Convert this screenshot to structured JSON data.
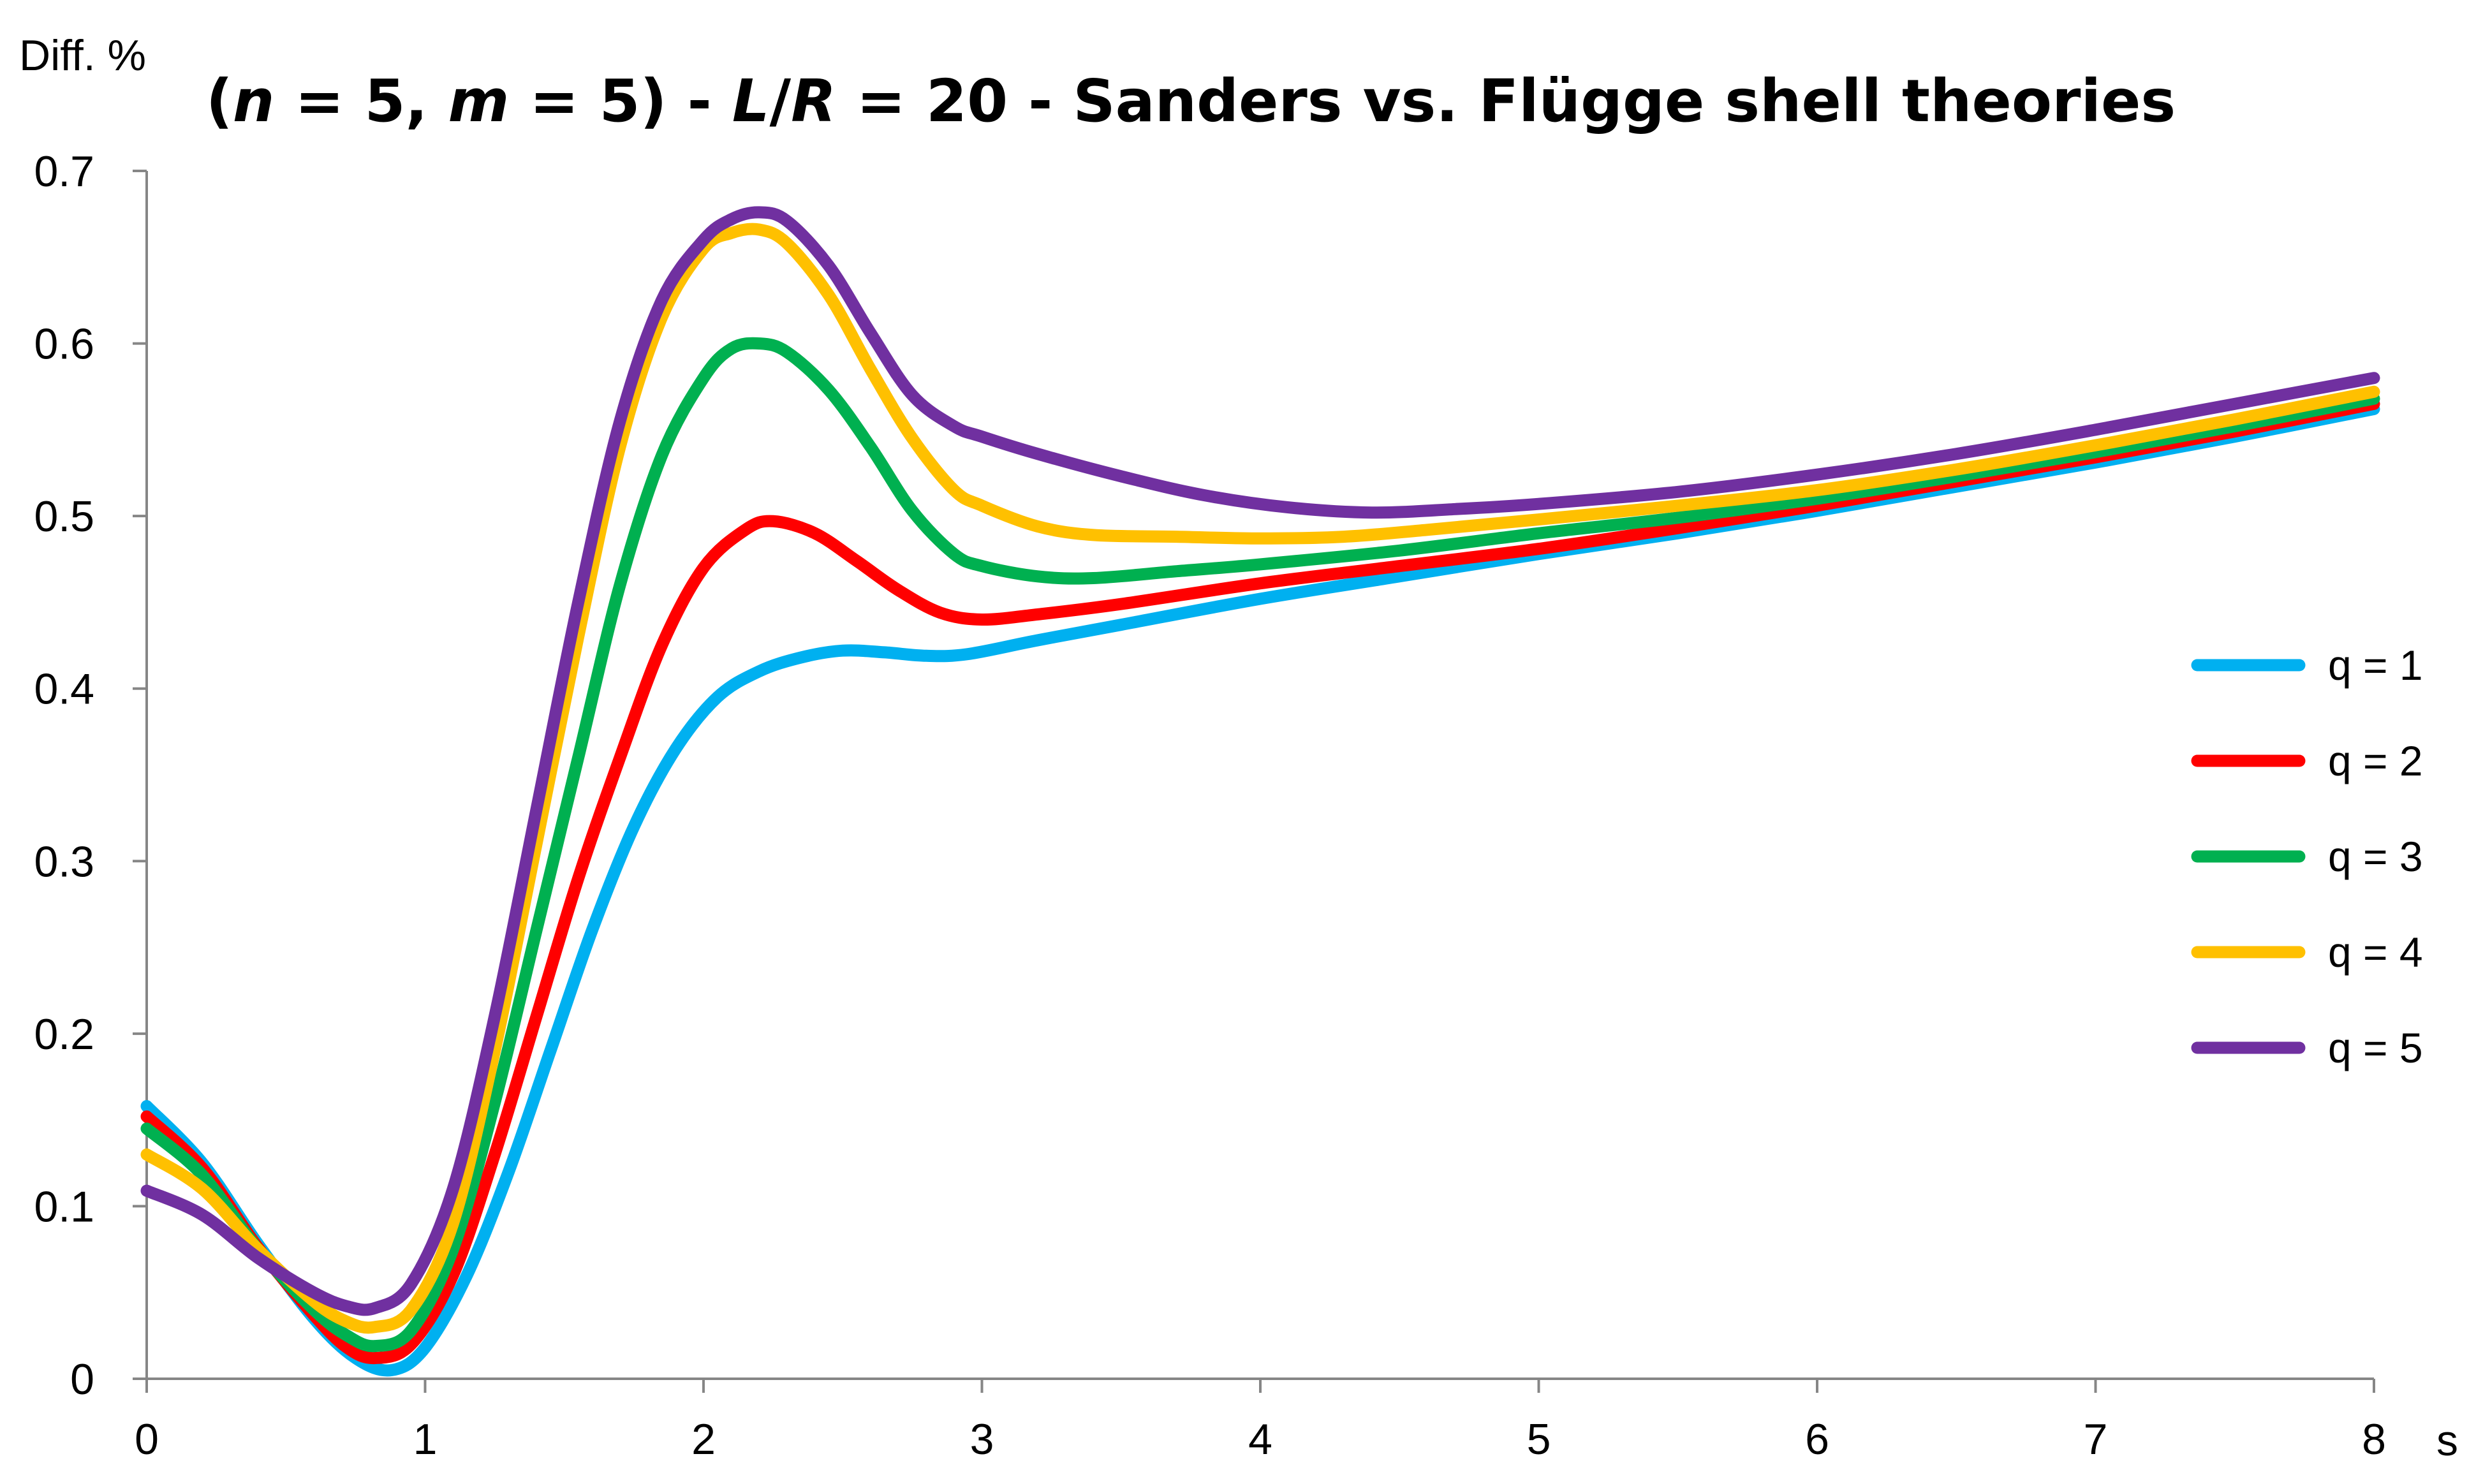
{
  "chart_data": {
    "type": "line",
    "title_parts": [
      {
        "text": "(",
        "italic": false
      },
      {
        "text": "n",
        "italic": true
      },
      {
        "text": " = 5, ",
        "italic": false
      },
      {
        "text": "m",
        "italic": true
      },
      {
        "text": " = 5) - ",
        "italic": false
      },
      {
        "text": "L",
        "italic": true
      },
      {
        "text": "/",
        "italic": false
      },
      {
        "text": "R",
        "italic": true
      },
      {
        "text": " = 20 - Sanders vs. Flügge shell theories",
        "italic": false
      }
    ],
    "xlabel": "s",
    "ylabel": "Diff. %",
    "xlim": [
      0,
      8
    ],
    "ylim": [
      0,
      0.7
    ],
    "xticks": [
      0,
      1,
      2,
      3,
      4,
      5,
      6,
      7,
      8
    ],
    "yticks": [
      0,
      0.1,
      0.2,
      0.3,
      0.4,
      0.5,
      0.6,
      0.7
    ],
    "ytick_labels": [
      "0",
      "0.1",
      "0.2",
      "0.3",
      "0.4",
      "0.5",
      "0.6",
      "0.7"
    ],
    "grid": false,
    "legend_position": "right",
    "series": [
      {
        "name": "q = 1",
        "color": "#00B0F0",
        "points": [
          [
            0,
            0.158
          ],
          [
            0.2,
            0.125
          ],
          [
            0.4,
            0.078
          ],
          [
            0.6,
            0.035
          ],
          [
            0.75,
            0.012
          ],
          [
            0.88,
            0.005
          ],
          [
            1.0,
            0.018
          ],
          [
            1.15,
            0.06
          ],
          [
            1.3,
            0.12
          ],
          [
            1.45,
            0.19
          ],
          [
            1.6,
            0.26
          ],
          [
            1.75,
            0.32
          ],
          [
            1.9,
            0.365
          ],
          [
            2.05,
            0.395
          ],
          [
            2.2,
            0.41
          ],
          [
            2.35,
            0.418
          ],
          [
            2.5,
            0.422
          ],
          [
            2.65,
            0.421
          ],
          [
            2.8,
            0.419
          ],
          [
            2.95,
            0.42
          ],
          [
            3.2,
            0.428
          ],
          [
            3.5,
            0.437
          ],
          [
            4.0,
            0.452
          ],
          [
            4.5,
            0.465
          ],
          [
            5.0,
            0.478
          ],
          [
            5.5,
            0.49
          ],
          [
            6.0,
            0.503
          ],
          [
            6.5,
            0.517
          ],
          [
            7.0,
            0.531
          ],
          [
            7.5,
            0.546
          ],
          [
            8.0,
            0.562
          ]
        ]
      },
      {
        "name": "q = 2",
        "color": "#FF0000",
        "points": [
          [
            0,
            0.152
          ],
          [
            0.2,
            0.122
          ],
          [
            0.4,
            0.076
          ],
          [
            0.6,
            0.037
          ],
          [
            0.72,
            0.018
          ],
          [
            0.82,
            0.012
          ],
          [
            0.95,
            0.02
          ],
          [
            1.1,
            0.06
          ],
          [
            1.25,
            0.13
          ],
          [
            1.4,
            0.21
          ],
          [
            1.55,
            0.29
          ],
          [
            1.7,
            0.36
          ],
          [
            1.85,
            0.425
          ],
          [
            2.0,
            0.47
          ],
          [
            2.15,
            0.492
          ],
          [
            2.25,
            0.497
          ],
          [
            2.4,
            0.49
          ],
          [
            2.55,
            0.474
          ],
          [
            2.7,
            0.457
          ],
          [
            2.85,
            0.444
          ],
          [
            3.0,
            0.44
          ],
          [
            3.2,
            0.443
          ],
          [
            3.5,
            0.449
          ],
          [
            4.0,
            0.461
          ],
          [
            4.5,
            0.471
          ],
          [
            5.0,
            0.481
          ],
          [
            5.5,
            0.493
          ],
          [
            6.0,
            0.506
          ],
          [
            6.5,
            0.52
          ],
          [
            7.0,
            0.534
          ],
          [
            7.5,
            0.549
          ],
          [
            8.0,
            0.565
          ]
        ]
      },
      {
        "name": "q = 3",
        "color": "#00B050",
        "points": [
          [
            0,
            0.145
          ],
          [
            0.2,
            0.118
          ],
          [
            0.4,
            0.075
          ],
          [
            0.6,
            0.04
          ],
          [
            0.72,
            0.025
          ],
          [
            0.82,
            0.019
          ],
          [
            0.95,
            0.028
          ],
          [
            1.1,
            0.075
          ],
          [
            1.25,
            0.16
          ],
          [
            1.4,
            0.26
          ],
          [
            1.55,
            0.36
          ],
          [
            1.7,
            0.46
          ],
          [
            1.85,
            0.535
          ],
          [
            2.0,
            0.58
          ],
          [
            2.1,
            0.597
          ],
          [
            2.2,
            0.6
          ],
          [
            2.3,
            0.595
          ],
          [
            2.45,
            0.573
          ],
          [
            2.6,
            0.54
          ],
          [
            2.75,
            0.503
          ],
          [
            2.9,
            0.478
          ],
          [
            3.0,
            0.471
          ],
          [
            3.2,
            0.465
          ],
          [
            3.4,
            0.464
          ],
          [
            3.7,
            0.468
          ],
          [
            4.0,
            0.472
          ],
          [
            4.5,
            0.48
          ],
          [
            5.0,
            0.49
          ],
          [
            5.5,
            0.499
          ],
          [
            6.0,
            0.51
          ],
          [
            6.5,
            0.523
          ],
          [
            7.0,
            0.537
          ],
          [
            7.5,
            0.552
          ],
          [
            8.0,
            0.568
          ]
        ]
      },
      {
        "name": "q = 4",
        "color": "#FFC000",
        "points": [
          [
            0,
            0.13
          ],
          [
            0.2,
            0.11
          ],
          [
            0.4,
            0.075
          ],
          [
            0.6,
            0.045
          ],
          [
            0.72,
            0.033
          ],
          [
            0.82,
            0.03
          ],
          [
            0.95,
            0.04
          ],
          [
            1.1,
            0.09
          ],
          [
            1.25,
            0.19
          ],
          [
            1.4,
            0.31
          ],
          [
            1.55,
            0.43
          ],
          [
            1.7,
            0.54
          ],
          [
            1.85,
            0.615
          ],
          [
            2.0,
            0.655
          ],
          [
            2.1,
            0.664
          ],
          [
            2.2,
            0.666
          ],
          [
            2.3,
            0.658
          ],
          [
            2.45,
            0.628
          ],
          [
            2.6,
            0.585
          ],
          [
            2.75,
            0.545
          ],
          [
            2.9,
            0.515
          ],
          [
            3.0,
            0.506
          ],
          [
            3.2,
            0.494
          ],
          [
            3.4,
            0.489
          ],
          [
            3.7,
            0.488
          ],
          [
            4.0,
            0.487
          ],
          [
            4.3,
            0.488
          ],
          [
            4.6,
            0.492
          ],
          [
            5.0,
            0.498
          ],
          [
            5.5,
            0.506
          ],
          [
            6.0,
            0.515
          ],
          [
            6.5,
            0.527
          ],
          [
            7.0,
            0.541
          ],
          [
            7.5,
            0.556
          ],
          [
            8.0,
            0.572
          ]
        ]
      },
      {
        "name": "q = 5",
        "color": "#7030A0",
        "points": [
          [
            0,
            0.109
          ],
          [
            0.2,
            0.095
          ],
          [
            0.4,
            0.07
          ],
          [
            0.6,
            0.05
          ],
          [
            0.72,
            0.042
          ],
          [
            0.82,
            0.041
          ],
          [
            0.95,
            0.055
          ],
          [
            1.1,
            0.11
          ],
          [
            1.25,
            0.21
          ],
          [
            1.4,
            0.33
          ],
          [
            1.55,
            0.45
          ],
          [
            1.7,
            0.555
          ],
          [
            1.85,
            0.625
          ],
          [
            2.0,
            0.66
          ],
          [
            2.1,
            0.672
          ],
          [
            2.2,
            0.676
          ],
          [
            2.3,
            0.671
          ],
          [
            2.45,
            0.645
          ],
          [
            2.6,
            0.606
          ],
          [
            2.75,
            0.57
          ],
          [
            2.9,
            0.552
          ],
          [
            3.0,
            0.546
          ],
          [
            3.2,
            0.536
          ],
          [
            3.5,
            0.523
          ],
          [
            3.8,
            0.512
          ],
          [
            4.1,
            0.505
          ],
          [
            4.4,
            0.502
          ],
          [
            4.7,
            0.504
          ],
          [
            5.0,
            0.507
          ],
          [
            5.5,
            0.514
          ],
          [
            6.0,
            0.524
          ],
          [
            6.5,
            0.536
          ],
          [
            7.0,
            0.55
          ],
          [
            7.5,
            0.565
          ],
          [
            8.0,
            0.58
          ]
        ]
      }
    ]
  }
}
